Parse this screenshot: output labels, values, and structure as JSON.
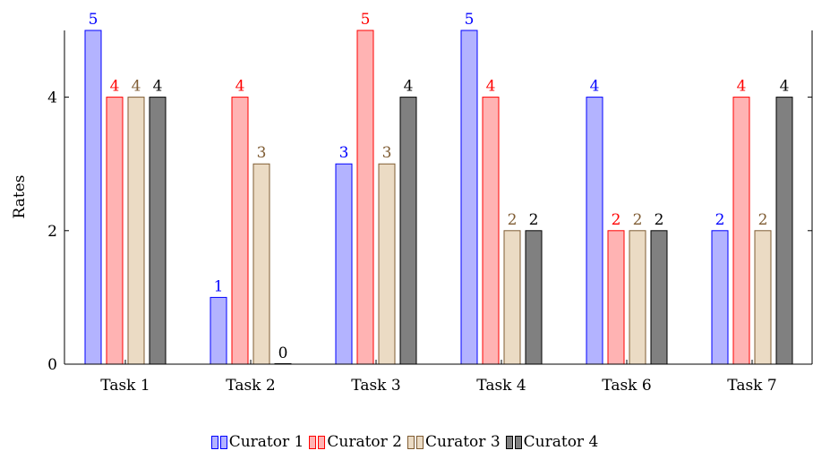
{
  "chart_data": {
    "type": "bar",
    "categories": [
      "Task 1",
      "Task 2",
      "Task 3",
      "Task 4",
      "Task 6",
      "Task 7"
    ],
    "series": [
      {
        "name": "Curator 1",
        "values": [
          5,
          1,
          3,
          5,
          4,
          2
        ],
        "fill": "#b3b3ff",
        "stroke": "#0000ff",
        "label_color": "#0000ff"
      },
      {
        "name": "Curator 2",
        "values": [
          4,
          4,
          5,
          4,
          2,
          4
        ],
        "fill": "#ffb3b3",
        "stroke": "#ff0000",
        "label_color": "#ff0000"
      },
      {
        "name": "Curator 3",
        "values": [
          4,
          3,
          3,
          2,
          2,
          2
        ],
        "fill": "#ebdbc4",
        "stroke": "#7f5c33",
        "label_color": "#7f5c33"
      },
      {
        "name": "Curator 4",
        "values": [
          4,
          0,
          4,
          2,
          2,
          4
        ],
        "fill": "#808080",
        "stroke": "#000000",
        "label_color": "#000000"
      }
    ],
    "yticks": [
      0,
      2,
      4
    ],
    "ylim": [
      0,
      5
    ],
    "ylabel": "Rates",
    "xlabel": "",
    "legend_position": "bottom-center"
  }
}
